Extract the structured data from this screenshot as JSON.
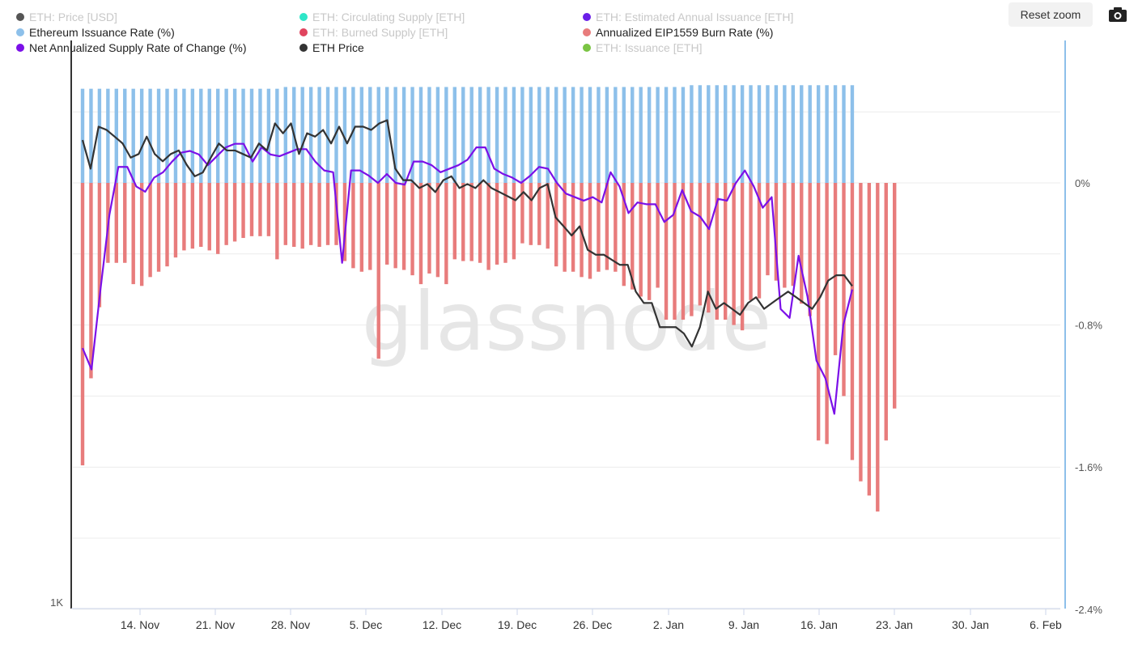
{
  "toolbar": {
    "reset_zoom_label": "Reset zoom",
    "export_icon": "camera-icon"
  },
  "watermark": "glassnode",
  "legend": [
    {
      "label": "ETH: Price [USD]",
      "color": "#555555",
      "enabled": false
    },
    {
      "label": "ETH: Circulating Supply [ETH]",
      "color": "#2ee6c8",
      "enabled": false
    },
    {
      "label": "ETH: Estimated Annual Issuance [ETH]",
      "color": "#6a1ee8",
      "enabled": false
    },
    {
      "label": "Ethereum Issuance Rate (%)",
      "color": "#8dc0ea",
      "enabled": true
    },
    {
      "label": "ETH: Burned Supply [ETH]",
      "color": "#e0445e",
      "enabled": false
    },
    {
      "label": "Annualized EIP1559 Burn Rate (%)",
      "color": "#e87c7c",
      "enabled": true
    },
    {
      "label": "Net Annualized Supply Rate of Change (%)",
      "color": "#7b10e8",
      "enabled": true
    },
    {
      "label": "ETH Price",
      "color": "#333333",
      "enabled": true
    },
    {
      "label": "ETH: Issuance [ETH]",
      "color": "#7ac443",
      "enabled": false
    }
  ],
  "chart_data": {
    "type": "bar",
    "x_start": "2021-11-09",
    "x_tick_labels": [
      "14. Nov",
      "21. Nov",
      "28. Nov",
      "5. Dec",
      "12. Dec",
      "19. Dec",
      "26. Dec",
      "2. Jan",
      "9. Jan",
      "16. Jan",
      "23. Jan",
      "30. Jan",
      "6. Feb"
    ],
    "right_axis": {
      "tick_labels": [
        "0%",
        "-0.8%",
        "-1.6%",
        "-2.4%"
      ],
      "range": [
        -2.4,
        0.55
      ]
    },
    "left_axis": {
      "tick_labels": [
        "1K"
      ],
      "scale": "log"
    },
    "series": [
      {
        "name": "Ethereum Issuance Rate (%)",
        "type": "bar",
        "color": "#8dc0ea",
        "values": [
          0.53,
          0.53,
          0.53,
          0.53,
          0.53,
          0.53,
          0.53,
          0.53,
          0.53,
          0.53,
          0.53,
          0.53,
          0.53,
          0.53,
          0.53,
          0.53,
          0.53,
          0.53,
          0.53,
          0.53,
          0.53,
          0.53,
          0.53,
          0.53,
          0.54,
          0.54,
          0.54,
          0.54,
          0.54,
          0.54,
          0.54,
          0.54,
          0.54,
          0.54,
          0.54,
          0.54,
          0.54,
          0.54,
          0.54,
          0.54,
          0.54,
          0.54,
          0.54,
          0.54,
          0.54,
          0.54,
          0.54,
          0.54,
          0.54,
          0.54,
          0.54,
          0.54,
          0.54,
          0.54,
          0.54,
          0.54,
          0.54,
          0.54,
          0.54,
          0.54,
          0.54,
          0.54,
          0.54,
          0.54,
          0.54,
          0.54,
          0.54,
          0.54,
          0.54,
          0.54,
          0.54,
          0.54,
          0.55,
          0.55,
          0.55,
          0.55,
          0.55,
          0.55,
          0.55,
          0.55,
          0.55,
          0.55,
          0.55,
          0.55,
          0.55,
          0.55,
          0.55,
          0.55,
          0.55,
          0.55,
          0.55,
          0.55
        ]
      },
      {
        "name": "Annualized EIP1559 Burn Rate (%)",
        "type": "bar",
        "color": "#e87c7c",
        "values": [
          -1.59,
          -1.1,
          -0.7,
          -0.45,
          -0.45,
          -0.45,
          -0.57,
          -0.58,
          -0.53,
          -0.5,
          -0.47,
          -0.42,
          -0.38,
          -0.37,
          -0.36,
          -0.38,
          -0.4,
          -0.35,
          -0.33,
          -0.31,
          -0.3,
          -0.3,
          -0.3,
          -0.43,
          -0.35,
          -0.36,
          -0.37,
          -0.35,
          -0.36,
          -0.35,
          -0.35,
          -0.44,
          -0.48,
          -0.5,
          -0.49,
          -0.99,
          -0.46,
          -0.48,
          -0.49,
          -0.52,
          -0.57,
          -0.51,
          -0.53,
          -0.57,
          -0.43,
          -0.44,
          -0.44,
          -0.45,
          -0.49,
          -0.46,
          -0.45,
          -0.43,
          -0.34,
          -0.35,
          -0.35,
          -0.37,
          -0.47,
          -0.5,
          -0.5,
          -0.53,
          -0.54,
          -0.5,
          -0.49,
          -0.5,
          -0.58,
          -0.6,
          -0.64,
          -0.66,
          -0.59,
          -0.77,
          -0.77,
          -0.77,
          -0.75,
          -0.69,
          -0.73,
          -0.77,
          -0.77,
          -0.8,
          -0.83,
          -0.66,
          -0.65,
          -0.52,
          -0.55,
          -0.59,
          -0.58,
          -0.68,
          -0.75,
          -1.45,
          -1.47,
          -0.97,
          -1.2,
          -1.56,
          -1.68,
          -1.76,
          -1.85,
          -1.45,
          -1.27
        ]
      },
      {
        "name": "Net Annualized Supply Rate of Change (%)",
        "type": "line",
        "color": "#7b10e8",
        "values": [
          -0.93,
          -1.05,
          -0.6,
          -0.18,
          0.09,
          0.09,
          -0.02,
          -0.05,
          0.03,
          0.06,
          0.12,
          0.17,
          0.18,
          0.16,
          0.1,
          0.15,
          0.2,
          0.22,
          0.22,
          0.12,
          0.2,
          0.16,
          0.15,
          0.17,
          0.19,
          0.19,
          0.12,
          0.07,
          0.06,
          -0.45,
          0.07,
          0.07,
          0.04,
          0.0,
          0.05,
          0.0,
          -0.01,
          0.12,
          0.12,
          0.1,
          0.06,
          0.08,
          0.1,
          0.13,
          0.2,
          0.2,
          0.08,
          0.05,
          0.03,
          0.0,
          0.04,
          0.09,
          0.08,
          0.0,
          -0.06,
          -0.08,
          -0.1,
          -0.08,
          -0.11,
          0.06,
          -0.02,
          -0.17,
          -0.11,
          -0.12,
          -0.12,
          -0.22,
          -0.18,
          -0.04,
          -0.16,
          -0.19,
          -0.26,
          -0.09,
          -0.1,
          0.0,
          0.07,
          -0.02,
          -0.14,
          -0.08,
          -0.71,
          -0.76,
          -0.41,
          -0.64,
          -1.0,
          -1.1,
          -1.3,
          -0.8,
          -0.6
        ]
      },
      {
        "name": "ETH Price",
        "type": "line",
        "color": "#333333",
        "values": [
          4500,
          4100,
          4700,
          4650,
          4550,
          4450,
          4250,
          4300,
          4550,
          4300,
          4200,
          4300,
          4350,
          4150,
          4000,
          4050,
          4250,
          4450,
          4350,
          4350,
          4300,
          4250,
          4450,
          4350,
          4750,
          4600,
          4750,
          4300,
          4600,
          4550,
          4650,
          4450,
          4700,
          4450,
          4700,
          4700,
          4650,
          4750,
          4800,
          4100,
          3950,
          3950,
          3850,
          3900,
          3800,
          3950,
          4000,
          3850,
          3900,
          3850,
          3950,
          3850,
          3800,
          3750,
          3700,
          3800,
          3700,
          3850,
          3900,
          3500,
          3400,
          3300,
          3400,
          3150,
          3100,
          3100,
          3050,
          3000,
          3000,
          2750,
          2650,
          2650,
          2450,
          2450,
          2450,
          2400,
          2300,
          2450,
          2750,
          2600,
          2650,
          2600,
          2550,
          2650,
          2700,
          2600,
          2650,
          2700,
          2750,
          2700,
          2650,
          2600,
          2700,
          2850,
          2900,
          2900,
          2800
        ]
      }
    ]
  }
}
